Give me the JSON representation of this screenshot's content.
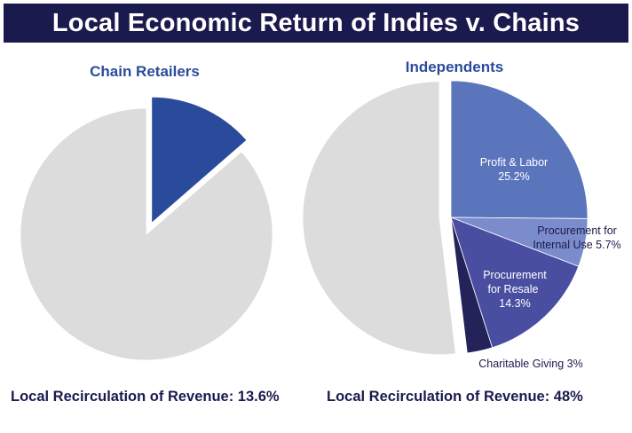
{
  "header": {
    "title": "Local Economic Return of Indies v. Chains"
  },
  "chart_data": [
    {
      "type": "pie",
      "title": "Chain Retailers",
      "footer": "Local Recirculation of Revenue: 13.6%",
      "slices": [
        {
          "label": "",
          "value": 13.6,
          "color": "#2a4b9b",
          "exploded": true
        },
        {
          "label": "",
          "value": 86.4,
          "color": "#dcdcdc",
          "exploded": false
        }
      ]
    },
    {
      "type": "pie",
      "title": "Independents",
      "footer": "Local Recirculation of Revenue: 48%",
      "slices": [
        {
          "label": "Profit & Labor",
          "value_label": "25.2%",
          "value": 25.2,
          "color": "#5b75bd",
          "text_color": "#ffffff",
          "exploded": false
        },
        {
          "label": "Procurement for Internal Use",
          "value_label": "5.7%",
          "value": 5.7,
          "color": "#7b8ccc",
          "text_color": "#1b1a4e",
          "exploded": false
        },
        {
          "label": "Procurement for Resale",
          "value_label": "14.3%",
          "value": 14.3,
          "color": "#4a4ea0",
          "text_color": "#ffffff",
          "exploded": false
        },
        {
          "label": "Charitable Giving",
          "value_label": "3%",
          "value": 3,
          "color": "#23235a",
          "text_color": "#1b1a4e",
          "exploded": false
        },
        {
          "label": "",
          "value_label": "",
          "value": 52,
          "color": "#dcdcdc",
          "exploded": true
        }
      ]
    }
  ]
}
